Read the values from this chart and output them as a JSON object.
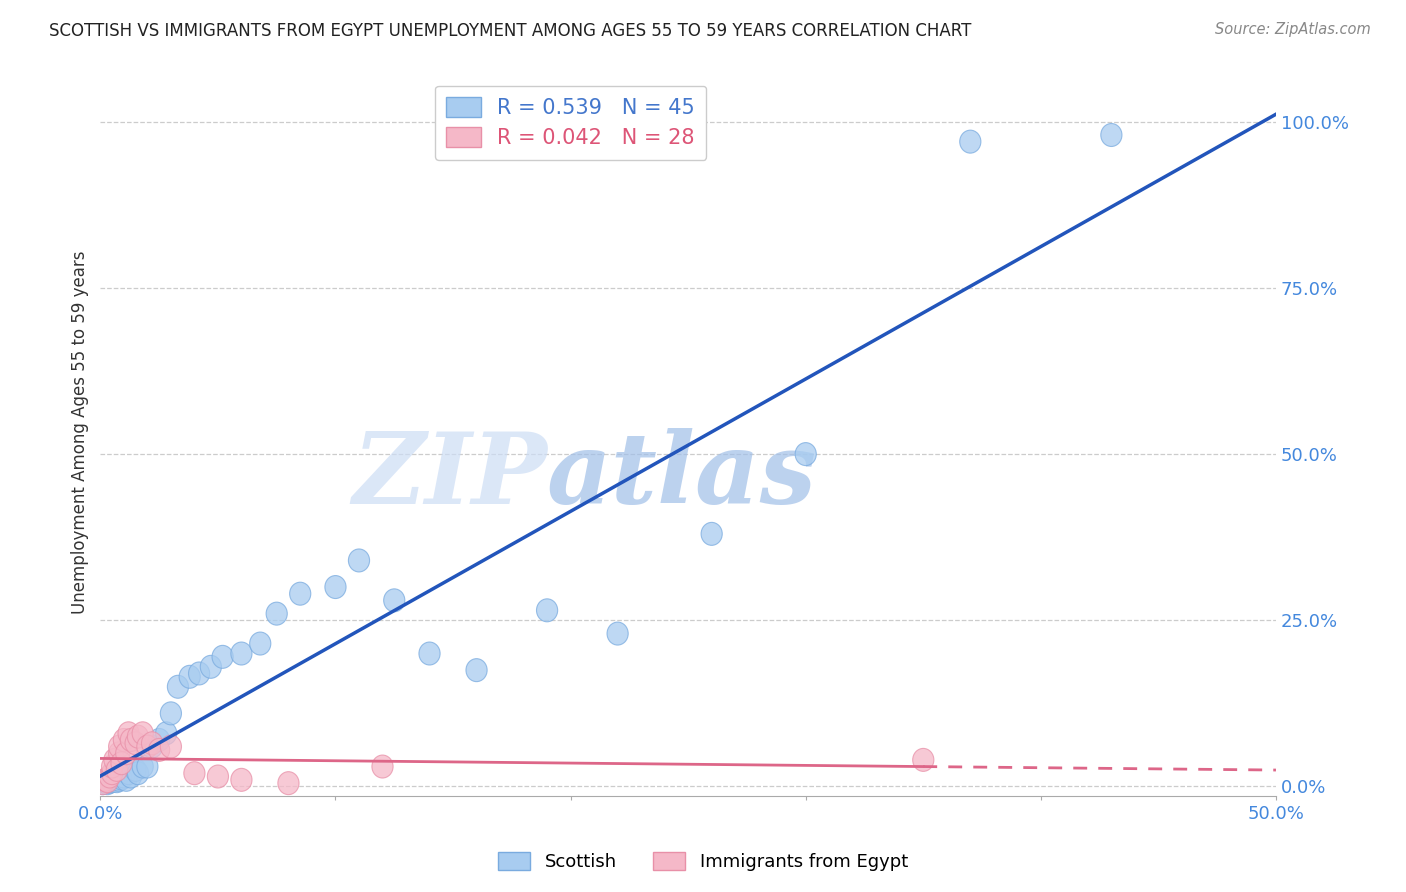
{
  "title": "SCOTTISH VS IMMIGRANTS FROM EGYPT UNEMPLOYMENT AMONG AGES 55 TO 59 YEARS CORRELATION CHART",
  "source": "Source: ZipAtlas.com",
  "ylabel": "Unemployment Among Ages 55 to 59 years",
  "yticks": [
    "0.0%",
    "25.0%",
    "50.0%",
    "75.0%",
    "100.0%"
  ],
  "ytick_vals": [
    0.0,
    0.25,
    0.5,
    0.75,
    1.0
  ],
  "xmin": 0.0,
  "xmax": 0.5,
  "ymin": -0.015,
  "ymax": 1.08,
  "watermark_zip": "ZIP",
  "watermark_atlas": "atlas",
  "blue_color": "#a8ccf0",
  "blue_edge_color": "#7aabdf",
  "pink_color": "#f5b8c8",
  "pink_edge_color": "#e890a8",
  "blue_line_color": "#2255bb",
  "pink_line_color": "#dd6688",
  "legend_R_blue": "R = 0.539",
  "legend_N_blue": "N = 45",
  "legend_R_pink": "R = 0.042",
  "legend_N_pink": "N = 28",
  "scottish_x": [
    0.001,
    0.002,
    0.003,
    0.003,
    0.004,
    0.004,
    0.005,
    0.005,
    0.006,
    0.007,
    0.007,
    0.008,
    0.009,
    0.01,
    0.011,
    0.012,
    0.013,
    0.015,
    0.016,
    0.018,
    0.02,
    0.022,
    0.025,
    0.028,
    0.03,
    0.033,
    0.038,
    0.042,
    0.047,
    0.052,
    0.06,
    0.068,
    0.075,
    0.085,
    0.1,
    0.11,
    0.125,
    0.14,
    0.16,
    0.19,
    0.22,
    0.26,
    0.3,
    0.37,
    0.43
  ],
  "scottish_y": [
    0.005,
    0.008,
    0.005,
    0.01,
    0.007,
    0.012,
    0.008,
    0.015,
    0.01,
    0.008,
    0.015,
    0.01,
    0.012,
    0.015,
    0.01,
    0.02,
    0.015,
    0.025,
    0.02,
    0.03,
    0.03,
    0.06,
    0.07,
    0.08,
    0.11,
    0.15,
    0.165,
    0.17,
    0.18,
    0.195,
    0.2,
    0.215,
    0.26,
    0.29,
    0.3,
    0.34,
    0.28,
    0.2,
    0.175,
    0.265,
    0.23,
    0.38,
    0.5,
    0.97,
    0.98
  ],
  "egypt_x": [
    0.001,
    0.002,
    0.003,
    0.004,
    0.005,
    0.005,
    0.006,
    0.007,
    0.008,
    0.008,
    0.009,
    0.01,
    0.011,
    0.012,
    0.013,
    0.015,
    0.016,
    0.018,
    0.02,
    0.022,
    0.025,
    0.03,
    0.04,
    0.05,
    0.06,
    0.08,
    0.12,
    0.35
  ],
  "egypt_y": [
    0.005,
    0.01,
    0.008,
    0.015,
    0.02,
    0.03,
    0.04,
    0.025,
    0.05,
    0.06,
    0.035,
    0.07,
    0.05,
    0.08,
    0.07,
    0.065,
    0.075,
    0.08,
    0.06,
    0.065,
    0.055,
    0.06,
    0.02,
    0.015,
    0.01,
    0.005,
    0.03,
    0.04
  ]
}
